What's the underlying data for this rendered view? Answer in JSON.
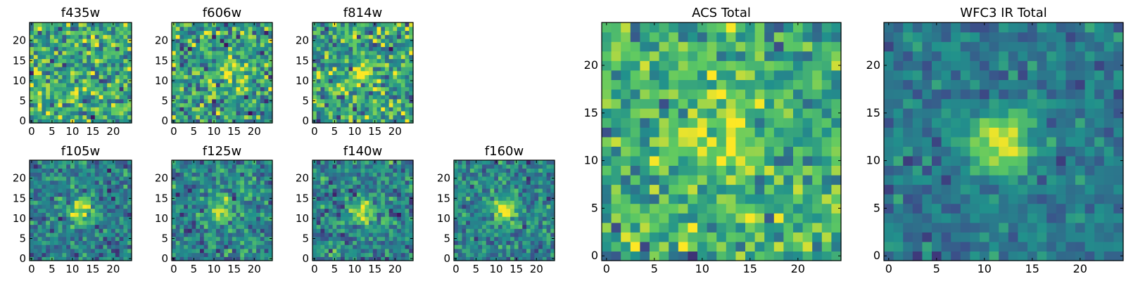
{
  "figure": {
    "colormap": "viridis",
    "colormap_stops": [
      "#440154",
      "#3b528b",
      "#21918c",
      "#5ec962",
      "#fde725"
    ]
  },
  "chart_data": [
    {
      "type": "heatmap",
      "title": "f435w",
      "xlim": [
        0,
        24
      ],
      "ylim": [
        0,
        24
      ],
      "xticks": [
        0,
        5,
        10,
        15,
        20
      ],
      "yticks": [
        0,
        5,
        10,
        15,
        20
      ],
      "noise": 0.2,
      "mean": 0.6,
      "source_peak": 0.0,
      "source_center": [
        12,
        12
      ],
      "source_width": 2.2,
      "seed": 11
    },
    {
      "type": "heatmap",
      "title": "f606w",
      "xlim": [
        0,
        24
      ],
      "ylim": [
        0,
        24
      ],
      "xticks": [
        0,
        5,
        10,
        15,
        20
      ],
      "yticks": [
        0,
        5,
        10,
        15,
        20
      ],
      "noise": 0.2,
      "mean": 0.55,
      "source_peak": 0.25,
      "source_center": [
        15,
        12
      ],
      "source_width": 3.0,
      "seed": 23
    },
    {
      "type": "heatmap",
      "title": "f814w",
      "xlim": [
        0,
        24
      ],
      "ylim": [
        0,
        24
      ],
      "xticks": [
        0,
        5,
        10,
        15,
        20
      ],
      "yticks": [
        0,
        5,
        10,
        15,
        20
      ],
      "noise": 0.2,
      "mean": 0.58,
      "source_peak": 0.35,
      "source_center": [
        12,
        12
      ],
      "source_width": 2.0,
      "seed": 37
    },
    {
      "type": "heatmap",
      "title": "f105w",
      "xlim": [
        0,
        24
      ],
      "ylim": [
        0,
        24
      ],
      "xticks": [
        0,
        5,
        10,
        15,
        20
      ],
      "yticks": [
        0,
        5,
        10,
        15,
        20
      ],
      "noise": 0.13,
      "mean": 0.42,
      "source_peak": 0.55,
      "source_center": [
        12,
        12
      ],
      "source_width": 2.0,
      "seed": 41
    },
    {
      "type": "heatmap",
      "title": "f125w",
      "xlim": [
        0,
        24
      ],
      "ylim": [
        0,
        24
      ],
      "xticks": [
        0,
        5,
        10,
        15,
        20
      ],
      "yticks": [
        0,
        5,
        10,
        15,
        20
      ],
      "noise": 0.14,
      "mean": 0.45,
      "source_peak": 0.5,
      "source_center": [
        12,
        12
      ],
      "source_width": 2.0,
      "seed": 53
    },
    {
      "type": "heatmap",
      "title": "f140w",
      "xlim": [
        0,
        24
      ],
      "ylim": [
        0,
        24
      ],
      "xticks": [
        0,
        5,
        10,
        15,
        20
      ],
      "yticks": [
        0,
        5,
        10,
        15,
        20
      ],
      "noise": 0.14,
      "mean": 0.45,
      "source_peak": 0.55,
      "source_center": [
        12,
        12
      ],
      "source_width": 2.0,
      "seed": 67
    },
    {
      "type": "heatmap",
      "title": "f160w",
      "xlim": [
        0,
        24
      ],
      "ylim": [
        0,
        24
      ],
      "xticks": [
        0,
        5,
        10,
        15,
        20
      ],
      "yticks": [
        0,
        5,
        10,
        15,
        20
      ],
      "noise": 0.13,
      "mean": 0.45,
      "source_peak": 0.55,
      "source_center": [
        12,
        12
      ],
      "source_width": 2.0,
      "seed": 79
    },
    {
      "type": "heatmap",
      "title": "ACS Total",
      "xlim": [
        0,
        24
      ],
      "ylim": [
        0,
        24
      ],
      "xticks": [
        0,
        5,
        10,
        15,
        20
      ],
      "yticks": [
        0,
        5,
        10,
        15,
        20
      ],
      "noise": 0.16,
      "mean": 0.62,
      "source_peak": 0.3,
      "source_center": [
        12,
        12
      ],
      "source_width": 2.5,
      "seed": 97
    },
    {
      "type": "heatmap",
      "title": "WFC3 IR Total",
      "xlim": [
        0,
        24
      ],
      "ylim": [
        0,
        24
      ],
      "xticks": [
        0,
        5,
        10,
        15,
        20
      ],
      "yticks": [
        0,
        5,
        10,
        15,
        20
      ],
      "noise": 0.09,
      "mean": 0.4,
      "source_peak": 0.62,
      "source_center": [
        12,
        12
      ],
      "source_width": 2.2,
      "seed": 113
    }
  ]
}
